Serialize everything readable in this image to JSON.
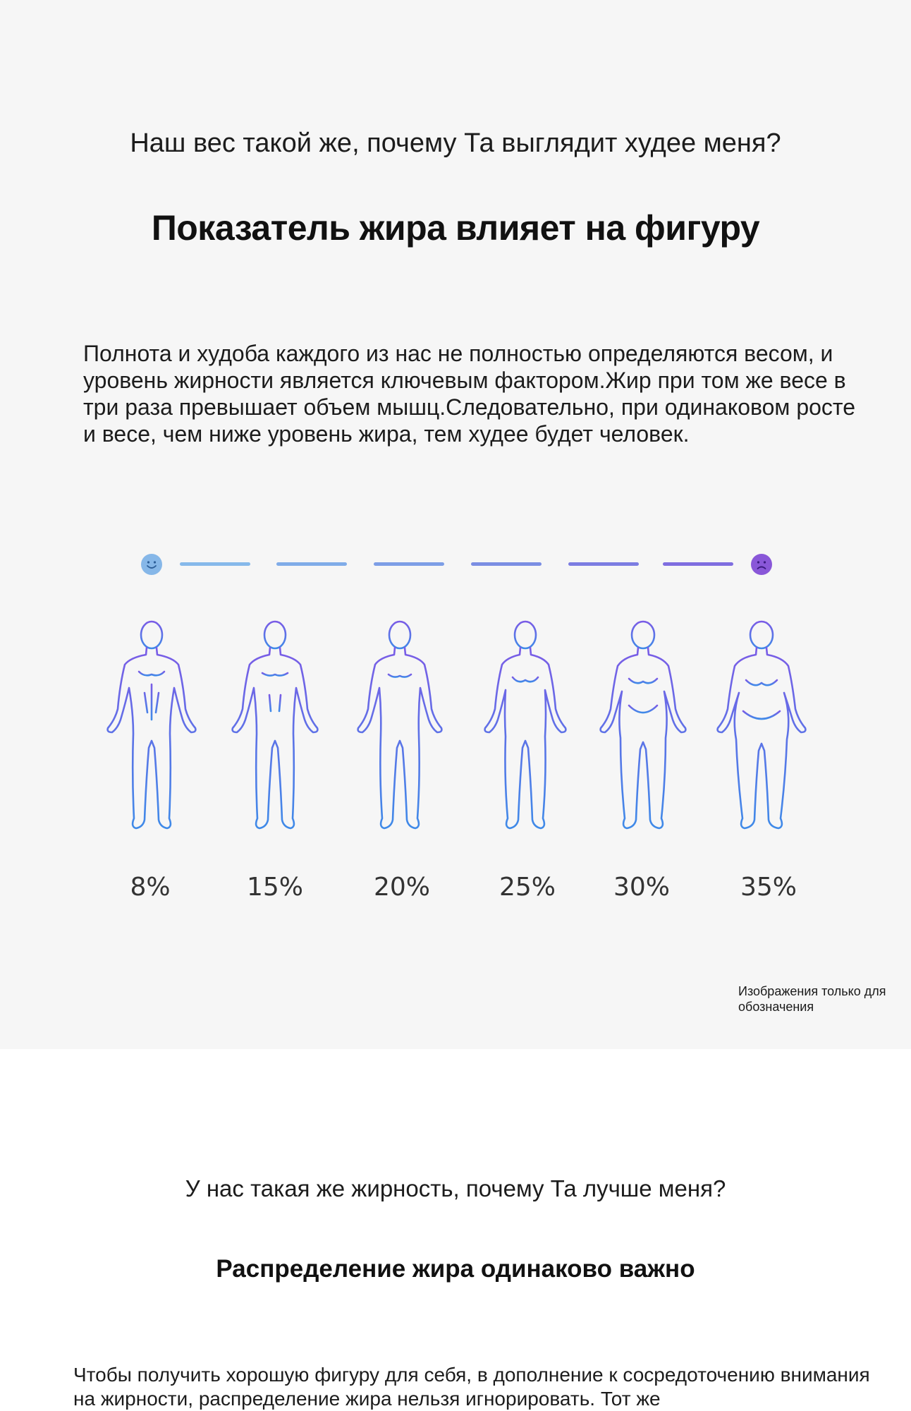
{
  "section1": {
    "question": "Наш вес такой же, почему Та выглядит худее меня?",
    "heading": "Показатель жира влияет на фигуру",
    "paragraph": "Полнота и худоба каждого из нас не полностью определяются весом, и уровень жирности является ключевым фактором.Жир при том же весе в три раза превышает объем мышц.Следовательно, при одинаковом росте и весе, чем ниже уровень жира, тем худее будет человек."
  },
  "scale": {
    "start_icon": "smiling-face-icon",
    "end_icon": "sad-face-icon",
    "start_color": "#86b7e8",
    "end_color": "#8957d8"
  },
  "figures": [
    {
      "label": "8%",
      "body_fat_percent": 8
    },
    {
      "label": "15%",
      "body_fat_percent": 15
    },
    {
      "label": "20%",
      "body_fat_percent": 20
    },
    {
      "label": "25%",
      "body_fat_percent": 25
    },
    {
      "label": "30%",
      "body_fat_percent": 30
    },
    {
      "label": "35%",
      "body_fat_percent": 35
    }
  ],
  "note": "Изображения только для обозначения",
  "section2": {
    "question": "У нас такая же жирность, почему Та лучше меня?",
    "heading": "Распределение жира одинаково важно",
    "paragraph": "Чтобы получить хорошую фигуру для себя, в дополнение к сосредоточению внимания на жирности, распределение жира нельзя игнорировать. Тот же"
  },
  "colors": {
    "figure_top": "#7a5ce6",
    "figure_bottom": "#3f8ae8",
    "panel_background": "#f6f6f6"
  }
}
